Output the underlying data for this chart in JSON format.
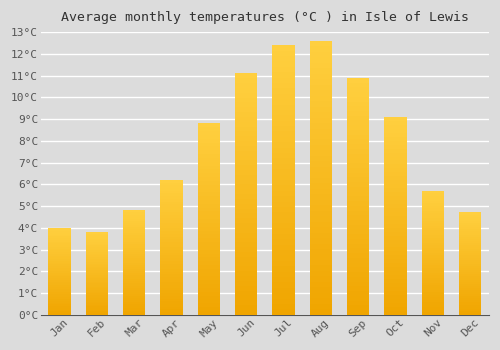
{
  "title": "Average monthly temperatures (°C ) in Isle of Lewis",
  "months": [
    "Jan",
    "Feb",
    "Mar",
    "Apr",
    "May",
    "Jun",
    "Jul",
    "Aug",
    "Sep",
    "Oct",
    "Nov",
    "Dec"
  ],
  "values": [
    4.0,
    3.8,
    4.8,
    6.2,
    8.8,
    11.1,
    12.4,
    12.6,
    10.9,
    9.1,
    5.7,
    4.7
  ],
  "bar_color_dark": "#F0A500",
  "bar_color_light": "#FFD040",
  "ylim": [
    0,
    13
  ],
  "ytick_step": 1,
  "background_color": "#DCDCDC",
  "plot_bg_color": "#DCDCDC",
  "grid_color": "#FFFFFF",
  "title_fontsize": 9.5,
  "tick_fontsize": 8,
  "bar_width": 0.6
}
